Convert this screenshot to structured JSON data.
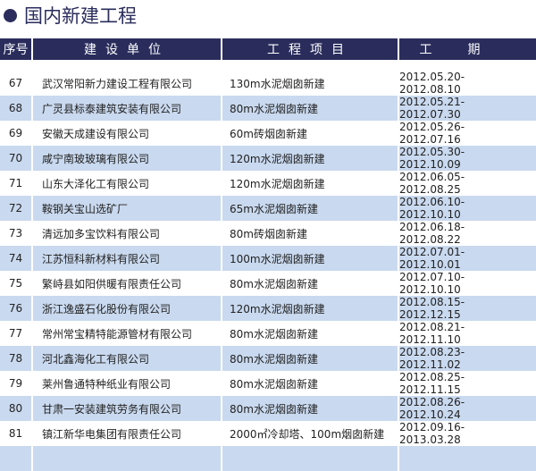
{
  "title": "国内新建工程",
  "headers": [
    "序号",
    "建设单位",
    "工程项目",
    "工期"
  ],
  "rows": [
    [
      "67",
      "武汉常阳新力建设工程有限公司",
      "130m水泥烟囱新建",
      "2012.05.20-2012.08.10"
    ],
    [
      "68",
      "广灵县标泰建筑安装有限公司",
      "80m水泥烟囱新建",
      "2012.05.21-2012.07.30"
    ],
    [
      "69",
      "安徽天成建设有限公司",
      "60m砖烟囱新建",
      "2012.05.26-2012.07.16"
    ],
    [
      "70",
      "咸宁南玻玻璃有限公司",
      "120m水泥烟囱新建",
      "2012.05.30-2012.10.09"
    ],
    [
      "71",
      "山东大泽化工有限公司",
      "120m水泥烟囱新建",
      "2012.06.05-2012.08.25"
    ],
    [
      "72",
      "鞍钢关宝山选矿厂",
      "65m水泥烟囱新建",
      "2012.06.10-2012.10.10"
    ],
    [
      "73",
      "清远加多宝饮料有限公司",
      "80m砖烟囱新建",
      "2012.06.18-2012.08.22"
    ],
    [
      "74",
      "江苏恒科新材料有限公司",
      "100m水泥烟囱新建",
      "2012.07.01-2012.10.01"
    ],
    [
      "75",
      "繁峙县如阳供暖有限责任公司",
      "80m水泥烟囱新建",
      "2012.07.10-2012.10.10"
    ],
    [
      "76",
      "浙江逸盛石化股份有限公司",
      "120m水泥烟囱新建",
      "2012.08.15-2012.12.15"
    ],
    [
      "77",
      "常州常宝精特能源管材有限公司",
      "80m水泥烟囱新建",
      "2012.08.21-2012.11.10"
    ],
    [
      "78",
      "河北鑫海化工有限公司",
      "80m水泥烟囱新建",
      "2012.08.23-2012.11.02"
    ],
    [
      "79",
      "莱州鲁通特种纸业有限公司",
      "80m水泥烟囱新建",
      "2012.08.25-2012.11.15"
    ],
    [
      "80",
      "甘肃一安装建筑劳务有限公司",
      "80m水泥烟囱新建",
      "2012.08.26-2012.10.24"
    ],
    [
      "81",
      "镇江新华电集团有限责任公司",
      "2000㎡冷却塔、100m烟囱新建",
      "2012.09.16-2013.03.28"
    ]
  ],
  "colors": {
    "header": "#2a2d5c",
    "stripe": "#c9d9ef"
  }
}
